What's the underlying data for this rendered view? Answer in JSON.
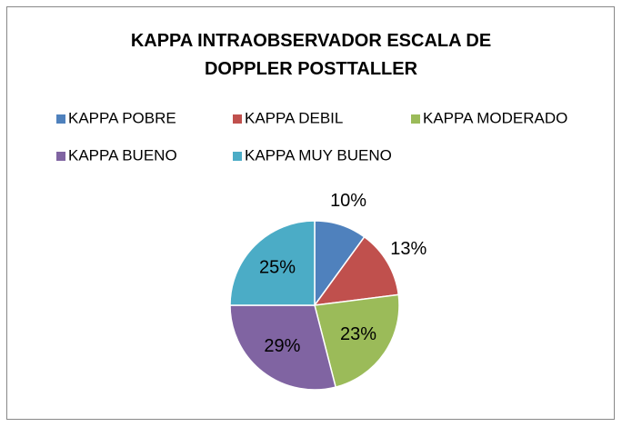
{
  "chart_data": {
    "type": "pie",
    "title": "KAPPA INTRAOBSERVADOR ESCALA DE DOPPLER POSTTALLER",
    "categories": [
      "KAPPA POBRE",
      "KAPPA DEBIL",
      "KAPPA MODERADO",
      "KAPPA BUENO",
      "KAPPA MUY BUENO"
    ],
    "values": [
      10,
      13,
      23,
      29,
      25
    ],
    "value_labels": [
      "10%",
      "13%",
      "23%",
      "29%",
      "25%"
    ],
    "colors": [
      "#4f81bd",
      "#c0504d",
      "#9bbb59",
      "#8064a2",
      "#4bacc6"
    ],
    "legend": "top"
  }
}
